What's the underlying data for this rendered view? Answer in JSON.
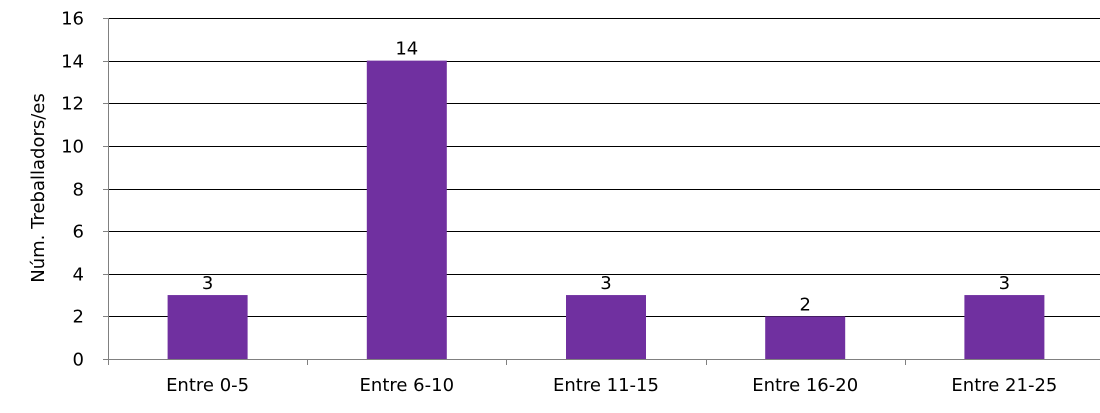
{
  "chart_data": {
    "type": "bar",
    "categories": [
      "Entre 0-5",
      "Entre 6-10",
      "Entre 11-15",
      "Entre 16-20",
      "Entre 21-25"
    ],
    "values": [
      3,
      14,
      3,
      2,
      3
    ],
    "data_labels": [
      "3",
      "14",
      "3",
      "2",
      "3"
    ],
    "xlabel": "",
    "ylabel": "Núm. Treballadors/es",
    "ylim": [
      0,
      16
    ],
    "yticks": [
      0,
      2,
      4,
      6,
      8,
      10,
      12,
      14,
      16
    ],
    "ytick_labels": [
      "0",
      "2",
      "4",
      "6",
      "8",
      "10",
      "12",
      "14",
      "16"
    ],
    "grid": true,
    "legend": "none",
    "colors": {
      "bar": "#7030a0",
      "grid": "#000000",
      "axis": "#808080"
    }
  }
}
